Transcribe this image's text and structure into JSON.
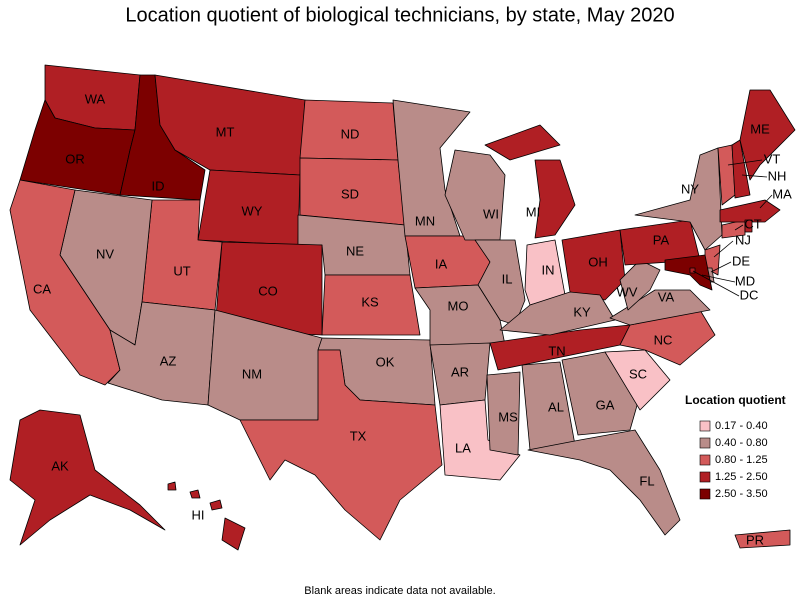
{
  "title": "Location quotient of biological technicians, by state, May 2020",
  "legend": {
    "title": "Location quotient",
    "items": [
      {
        "label": "0.17 - 0.40",
        "color": "#f9c1c6"
      },
      {
        "label": "0.40 - 0.80",
        "color": "#b98c89"
      },
      {
        "label": "0.80 - 1.25",
        "color": "#d35a5a"
      },
      {
        "label": "1.25 - 2.50",
        "color": "#b01f24"
      },
      {
        "label": "2.50 - 3.50",
        "color": "#7c0000"
      }
    ]
  },
  "states": [
    {
      "label": "WA",
      "bin": 3
    },
    {
      "label": "OR",
      "bin": 4
    },
    {
      "label": "ID",
      "bin": 4
    },
    {
      "label": "MT",
      "bin": 3
    },
    {
      "label": "WY",
      "bin": 3
    },
    {
      "label": "ND",
      "bin": 2
    },
    {
      "label": "SD",
      "bin": 2
    },
    {
      "label": "NE",
      "bin": 1
    },
    {
      "label": "KS",
      "bin": 2
    },
    {
      "label": "CO",
      "bin": 3
    },
    {
      "label": "UT",
      "bin": 2
    },
    {
      "label": "NV",
      "bin": 1
    },
    {
      "label": "CA",
      "bin": 2
    },
    {
      "label": "AZ",
      "bin": 1
    },
    {
      "label": "NM",
      "bin": 1
    },
    {
      "label": "OK",
      "bin": 1
    },
    {
      "label": "TX",
      "bin": 2
    },
    {
      "label": "MN",
      "bin": 1
    },
    {
      "label": "IA",
      "bin": 2
    },
    {
      "label": "WI",
      "bin": 1
    },
    {
      "label": "MI",
      "bin": 3
    },
    {
      "label": "IL",
      "bin": 1
    },
    {
      "label": "IN",
      "bin": 0
    },
    {
      "label": "OH",
      "bin": 3
    },
    {
      "label": "MO",
      "bin": 1
    },
    {
      "label": "AR",
      "bin": 1
    },
    {
      "label": "LA",
      "bin": 0
    },
    {
      "label": "MS",
      "bin": 1
    },
    {
      "label": "AL",
      "bin": 1
    },
    {
      "label": "TN",
      "bin": 3
    },
    {
      "label": "KY",
      "bin": 1
    },
    {
      "label": "GA",
      "bin": 1
    },
    {
      "label": "FL",
      "bin": 1
    },
    {
      "label": "SC",
      "bin": 0
    },
    {
      "label": "NC",
      "bin": 2
    },
    {
      "label": "VA",
      "bin": 1
    },
    {
      "label": "WV",
      "bin": 1
    },
    {
      "label": "PA",
      "bin": 3
    },
    {
      "label": "NY",
      "bin": 1
    },
    {
      "label": "NJ",
      "bin": 2
    },
    {
      "label": "CT",
      "bin": 2
    },
    {
      "label": "MA",
      "bin": 3
    },
    {
      "label": null,
      "bin": 3
    },
    {
      "label": "VT",
      "bin": 2
    },
    {
      "label": "NH",
      "bin": 3
    },
    {
      "label": "ME",
      "bin": 3
    },
    {
      "label": "DE",
      "bin": 1
    },
    {
      "label": "MD",
      "bin": 4
    },
    {
      "label": "DC",
      "bin": 3
    },
    {
      "label": "AK",
      "bin": 3
    },
    {
      "label": "HI",
      "bin": 3
    },
    {
      "label": "PR",
      "bin": 2
    }
  ],
  "note": "Blank areas indicate data not available."
}
